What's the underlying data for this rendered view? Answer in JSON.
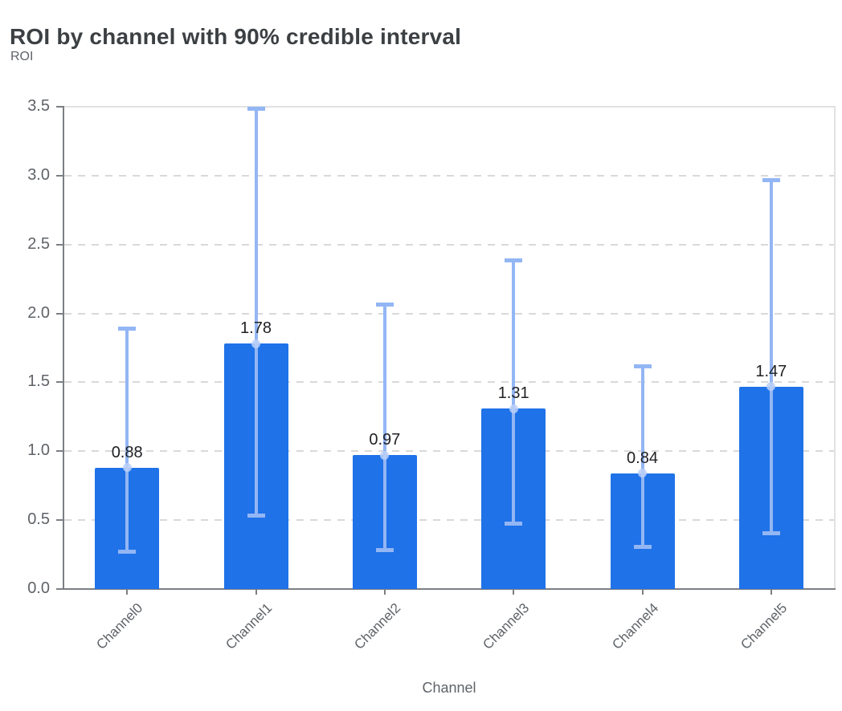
{
  "header": {
    "title": "ROI by channel with 90% credible interval",
    "y_axis_title": "ROI"
  },
  "chart_data": {
    "type": "bar",
    "title": "ROI by channel with 90% credible interval",
    "xlabel": "Channel",
    "ylabel": "ROI",
    "ylim": [
      0,
      3.5
    ],
    "yticks": [
      0.0,
      0.5,
      1.0,
      1.5,
      2.0,
      2.5,
      3.0,
      3.5
    ],
    "grid": "horizontal-dashed",
    "legend": "none",
    "categories": [
      "Channel0",
      "Channel1",
      "Channel2",
      "Channel3",
      "Channel4",
      "Channel5"
    ],
    "values": [
      0.88,
      1.78,
      0.97,
      1.31,
      0.84,
      1.47
    ],
    "value_labels": [
      "0.88",
      "1.78",
      "0.97",
      "1.31",
      "0.84",
      "1.47"
    ],
    "error_bars": {
      "label": "90% credible interval",
      "low": [
        0.27,
        0.53,
        0.28,
        0.47,
        0.3,
        0.4
      ],
      "high": [
        1.89,
        3.49,
        2.07,
        2.39,
        1.62,
        2.97
      ]
    },
    "colors": {
      "bar": "#1f72e8",
      "error_bar": "#93b6f4",
      "error_marker": "#bcd0f8",
      "value_label": "#202124",
      "axis": "#7b7f84",
      "grid": "#d9d9d9",
      "frame": "#e2e2e2",
      "tick_label": "#5f6368",
      "title": "#3c4043"
    }
  }
}
